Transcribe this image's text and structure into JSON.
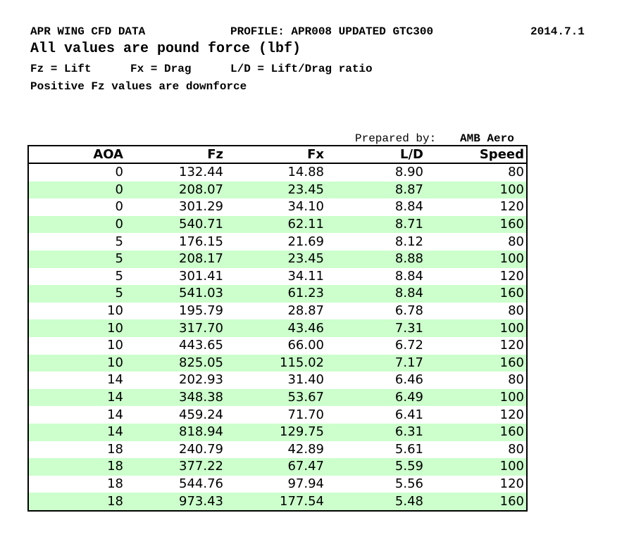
{
  "header": {
    "title": "APR WING CFD DATA",
    "profile": "PROFILE: APR008 UPDATED GTC300",
    "date": "2014.7.1",
    "units": "All values are pound force (lbf)",
    "legend": [
      "Fz = Lift",
      "Fx = Drag",
      "L/D = Lift/Drag ratio"
    ],
    "note": "Positive Fz values are downforce"
  },
  "prepared": {
    "label": "Prepared by:",
    "name": "AMB Aero"
  },
  "table": {
    "columns": [
      "AOA",
      "Fz",
      "Fx",
      "L/D",
      "Speed"
    ],
    "rows": [
      [
        "0",
        "132.44",
        "14.88",
        "8.90",
        "80"
      ],
      [
        "0",
        "208.07",
        "23.45",
        "8.87",
        "100"
      ],
      [
        "0",
        "301.29",
        "34.10",
        "8.84",
        "120"
      ],
      [
        "0",
        "540.71",
        "62.11",
        "8.71",
        "160"
      ],
      [
        "5",
        "176.15",
        "21.69",
        "8.12",
        "80"
      ],
      [
        "5",
        "208.17",
        "23.45",
        "8.88",
        "100"
      ],
      [
        "5",
        "301.41",
        "34.11",
        "8.84",
        "120"
      ],
      [
        "5",
        "541.03",
        "61.23",
        "8.84",
        "160"
      ],
      [
        "10",
        "195.79",
        "28.87",
        "6.78",
        "80"
      ],
      [
        "10",
        "317.70",
        "43.46",
        "7.31",
        "100"
      ],
      [
        "10",
        "443.65",
        "66.00",
        "6.72",
        "120"
      ],
      [
        "10",
        "825.05",
        "115.02",
        "7.17",
        "160"
      ],
      [
        "14",
        "202.93",
        "31.40",
        "6.46",
        "80"
      ],
      [
        "14",
        "348.38",
        "53.67",
        "6.49",
        "100"
      ],
      [
        "14",
        "459.24",
        "71.70",
        "6.41",
        "120"
      ],
      [
        "14",
        "818.94",
        "129.75",
        "6.31",
        "160"
      ],
      [
        "18",
        "240.79",
        "42.89",
        "5.61",
        "80"
      ],
      [
        "18",
        "377.22",
        "67.47",
        "5.59",
        "100"
      ],
      [
        "18",
        "544.76",
        "97.94",
        "5.56",
        "120"
      ],
      [
        "18",
        "973.43",
        "177.54",
        "5.48",
        "160"
      ]
    ]
  }
}
